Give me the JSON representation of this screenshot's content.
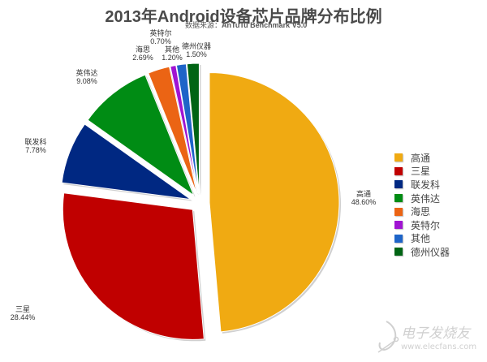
{
  "chart_data": {
    "type": "pie",
    "title": "2013年Android设备芯片品牌分布比例",
    "subtitle_prefix": "数据来源：",
    "subtitle_source": "AnTuTu Benchmark V5.0",
    "categories": [
      "高通",
      "三星",
      "联发科",
      "英伟达",
      "海思",
      "英特尔",
      "其他",
      "德州仪器"
    ],
    "values": [
      48.6,
      28.44,
      7.78,
      9.08,
      2.69,
      0.7,
      1.2,
      1.5
    ],
    "value_labels": [
      "48.60%",
      "28.44%",
      "7.78%",
      "9.08%",
      "2.69%",
      "0.70%",
      "1.20%",
      "1.50%"
    ],
    "colors": [
      "#F0AA12",
      "#C00000",
      "#002882",
      "#008C14",
      "#EB6414",
      "#A014D2",
      "#1E64C8",
      "#006414"
    ],
    "exploded": true,
    "start_angle": "12 o'clock, clockwise",
    "legend_position": "right"
  },
  "watermark": {
    "line1": "电子发烧友",
    "line2": "www.elecfans.com"
  }
}
